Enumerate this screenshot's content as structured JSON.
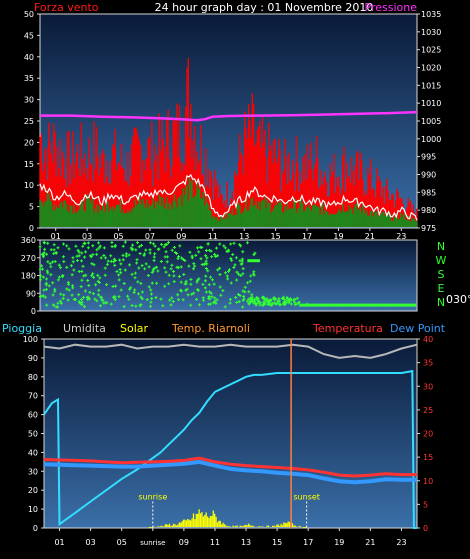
{
  "title": "24 hour graph day : 01 Novembre 2010",
  "colors": {
    "background": "#000000",
    "plot_top": "#3a6fa8",
    "plot_bottom": "#0a1a38",
    "frame": "#d8d8d8",
    "wind_speed": "#ff1a1a",
    "wind_gust": "#ff0000",
    "wind_avg": "#ffffff",
    "wind_fill_green": "#1a8a1a",
    "pressure": "#ff33ff",
    "direction": "#33ff33",
    "rain": "#33ddff",
    "humidity": "#b8b8b8",
    "solar": "#ffff00",
    "temp_label": "#ff9933",
    "temperature": "#ff3333",
    "dew_point": "#3399ff",
    "marker": "#ff8040",
    "annotation": "#ffff00",
    "tick_text": "#ffffff"
  },
  "chart_data": [
    {
      "type": "line",
      "panel": "wind_pressure",
      "labels": {
        "left": "Forza vento",
        "right": "Pressione"
      },
      "y_left_ticks": [
        0,
        5,
        10,
        15,
        20,
        25,
        30,
        35,
        40,
        45,
        50
      ],
      "y_left_range": [
        0,
        50
      ],
      "y_right_ticks": [
        975,
        980,
        985,
        990,
        995,
        1000,
        1005,
        1010,
        1015,
        1020,
        1025,
        1030,
        1035
      ],
      "y_right_range": [
        975,
        1035
      ],
      "x_ticks": [
        "01",
        "03",
        "05",
        "07",
        "09",
        "11",
        "13",
        "15",
        "17",
        "19",
        "21",
        "23"
      ],
      "x_range": [
        0,
        24
      ],
      "series": [
        {
          "name": "Forza vento",
          "role": "wind_avg",
          "x": [
            0.0,
            0.5,
            1.0,
            1.5,
            2.0,
            2.5,
            3.0,
            3.5,
            4.0,
            4.5,
            5.0,
            5.5,
            6.0,
            6.5,
            7.0,
            7.5,
            8.0,
            8.5,
            9.0,
            9.5,
            10.0,
            10.5,
            11.0,
            11.5,
            12.0,
            12.5,
            13.0,
            13.5,
            14.0,
            14.5,
            15.0,
            15.5,
            16.0,
            16.5,
            17.0,
            17.5,
            18.0,
            18.5,
            19.0,
            19.5,
            20.0,
            20.5,
            21.0,
            21.5,
            22.0,
            22.5,
            23.0,
            23.5,
            24.0
          ],
          "y": [
            10,
            9,
            7,
            8,
            7,
            6,
            8,
            7,
            6,
            8,
            7,
            6,
            7,
            8,
            7,
            9,
            8,
            9,
            10,
            12,
            11,
            9,
            4,
            3,
            4,
            6,
            7,
            9,
            8,
            7,
            7,
            6,
            7,
            7,
            6,
            6,
            6,
            5,
            6,
            7,
            6,
            6,
            5,
            4,
            4,
            3,
            4,
            3,
            2
          ]
        },
        {
          "name": "Raffica",
          "role": "wind_gust",
          "x": [
            0.0,
            0.5,
            1.0,
            1.5,
            2.0,
            2.5,
            3.0,
            3.5,
            4.0,
            4.5,
            5.0,
            5.5,
            6.0,
            6.5,
            7.0,
            7.5,
            8.0,
            8.5,
            9.0,
            9.5,
            10.0,
            10.5,
            11.0,
            11.5,
            12.0,
            12.5,
            13.0,
            13.5,
            14.0,
            14.5,
            15.0,
            15.5,
            16.0,
            16.5,
            17.0,
            17.5,
            18.0,
            18.5,
            19.0,
            19.5,
            20.0,
            20.5,
            21.0,
            21.5,
            22.0,
            22.5,
            23.0,
            23.5,
            24.0
          ],
          "y": [
            26,
            22,
            24,
            20,
            19,
            21,
            20,
            22,
            18,
            21,
            19,
            17,
            20,
            23,
            21,
            22,
            24,
            26,
            27,
            38,
            25,
            21,
            15,
            8,
            10,
            16,
            24,
            27,
            22,
            21,
            20,
            17,
            19,
            18,
            17,
            20,
            16,
            15,
            16,
            18,
            16,
            15,
            14,
            12,
            10,
            9,
            8,
            6,
            4
          ]
        },
        {
          "name": "Pressione",
          "role": "pressure",
          "x": [
            0,
            2,
            4,
            6,
            8,
            9,
            10,
            10.5,
            11,
            12,
            14,
            16,
            18,
            20,
            22,
            24
          ],
          "y": [
            1006.5,
            1006.5,
            1006.2,
            1006,
            1005.7,
            1005.5,
            1005.2,
            1005.5,
            1006.2,
            1006.4,
            1006.5,
            1006.6,
            1006.8,
            1007,
            1007.2,
            1007.5
          ]
        }
      ]
    },
    {
      "type": "scatter",
      "panel": "wind_direction",
      "y_ticks": [
        0,
        90,
        180,
        270,
        360
      ],
      "y_range": [
        0,
        360
      ],
      "compass_labels": [
        "N",
        "W",
        "S",
        "E",
        "N"
      ],
      "current_direction": "030°",
      "x_range": [
        0,
        24
      ],
      "series": [
        {
          "name": "Direzione",
          "x": [
            0.2,
            0.5,
            0.9,
            1.3,
            1.7,
            2.1,
            2.5,
            2.9,
            3.3,
            3.7,
            4.1,
            4.5,
            4.9,
            5.3,
            5.7,
            6.1,
            6.5,
            6.9,
            7.3,
            7.7,
            8.1,
            8.5,
            8.9,
            9.3,
            9.7,
            10.1,
            10.5,
            10.9,
            11.3,
            11.7,
            12.1,
            12.5,
            12.9,
            13.3,
            13.6,
            14.0,
            14.5,
            15.0,
            15.5,
            16.0,
            16.5,
            17.0,
            18.0,
            19.0,
            20.0,
            21.0,
            22.0,
            23.0,
            23.8
          ],
          "y": [
            290,
            250,
            310,
            220,
            330,
            270,
            200,
            300,
            240,
            150,
            320,
            280,
            200,
            260,
            110,
            310,
            230,
            180,
            290,
            60,
            250,
            200,
            330,
            150,
            270,
            300,
            240,
            90,
            280,
            330,
            40,
            270,
            20,
            60,
            40,
            30,
            50,
            60,
            40,
            55,
            45,
            35,
            30,
            30,
            30,
            30,
            30,
            30,
            30
          ]
        }
      ]
    },
    {
      "type": "line",
      "panel": "temperature_rain",
      "labels": {
        "rain": "Pioggia",
        "humidity": "Umidita",
        "solar": "Solar",
        "temp_riarnoli": "Temp. Riarnoli",
        "temperature": "Temperatura",
        "dew_point": "Dew Point"
      },
      "y_left_ticks": [
        0,
        10,
        20,
        30,
        40,
        50,
        60,
        70,
        80,
        90,
        100
      ],
      "y_left_range": [
        0,
        100
      ],
      "y_right_ticks": [
        0,
        5,
        10,
        15,
        20,
        25,
        30,
        35,
        40
      ],
      "y_right_range": [
        0,
        40
      ],
      "x_ticks": [
        "01",
        "03",
        "05",
        "sunrise",
        "09",
        "11",
        "13",
        "15",
        "17",
        "19",
        "21",
        "23"
      ],
      "x_range": [
        0,
        24
      ],
      "annotations": {
        "sunrise": "sunrise",
        "sunset": "sunset",
        "sunrise_x": 7.0,
        "sunset_x": 16.9,
        "marker_x": 15.9
      },
      "series": [
        {
          "name": "Umidita",
          "role": "humidity",
          "x": [
            0,
            1,
            2,
            3,
            4,
            5,
            6,
            7,
            8,
            9,
            10,
            11,
            12,
            13,
            14,
            15,
            16,
            17,
            18,
            19,
            20,
            21,
            22,
            23,
            24
          ],
          "y": [
            96,
            95,
            97,
            96,
            96,
            97,
            95,
            96,
            96,
            97,
            96,
            96,
            97,
            96,
            96,
            96,
            97,
            96,
            92,
            90,
            91,
            90,
            92,
            95,
            97
          ]
        },
        {
          "name": "Pioggia",
          "role": "rain",
          "x": [
            0.0,
            0.5,
            0.9,
            1.0,
            2,
            3,
            4,
            5,
            6,
            7,
            7.5,
            8,
            8.5,
            9,
            9.5,
            10,
            10.5,
            11,
            11.5,
            12,
            12.5,
            13,
            13.5,
            14,
            15,
            16,
            17,
            18,
            19,
            20,
            21,
            22,
            23,
            23.7,
            23.8,
            24
          ],
          "y": [
            60,
            66,
            68,
            2,
            8,
            14,
            20,
            26,
            31,
            37,
            40,
            44,
            48,
            52,
            57,
            61,
            67,
            72,
            74,
            76,
            78,
            80,
            81,
            81,
            82,
            82,
            82,
            82,
            82,
            82,
            82,
            82,
            82,
            83,
            0,
            0
          ]
        },
        {
          "name": "Temperatura",
          "role": "temperature",
          "x": [
            0,
            1,
            2,
            3,
            4,
            5,
            6,
            7,
            8,
            9,
            10,
            11,
            12,
            13,
            14,
            15,
            16,
            17,
            18,
            19,
            20,
            21,
            22,
            23,
            24
          ],
          "y": [
            14.5,
            14.4,
            14.3,
            14.2,
            14.0,
            13.8,
            13.9,
            14.0,
            14.1,
            14.3,
            14.8,
            14.0,
            13.5,
            13.2,
            13.0,
            12.8,
            12.6,
            12.3,
            11.8,
            11.2,
            11.0,
            11.2,
            11.5,
            11.3,
            11.3
          ]
        },
        {
          "name": "Dew Point",
          "role": "dew_point",
          "x": [
            0,
            1,
            2,
            3,
            4,
            5,
            6,
            7,
            8,
            9,
            10,
            11,
            12,
            13,
            14,
            15,
            16,
            17,
            18,
            19,
            20,
            21,
            22,
            23,
            24
          ],
          "y": [
            13.5,
            13.4,
            13.3,
            13.2,
            13.1,
            13.0,
            13.0,
            13.2,
            13.4,
            13.6,
            14.0,
            13.2,
            12.5,
            12.2,
            12.0,
            11.7,
            11.5,
            11.2,
            10.5,
            9.9,
            9.7,
            9.9,
            10.3,
            10.2,
            10.2
          ]
        },
        {
          "name": "Solar",
          "role": "solar",
          "x": [
            6.8,
            7.2,
            7.6,
            8.0,
            8.4,
            8.8,
            9.2,
            9.6,
            10.0,
            10.4,
            10.8,
            11.2,
            11.6,
            12.0,
            12.4,
            12.8,
            13.2,
            13.6,
            14.0,
            14.4,
            14.8,
            15.2,
            15.6,
            16.0,
            16.4,
            16.8
          ],
          "y": [
            0,
            1,
            1,
            2,
            2,
            3,
            4,
            6,
            9,
            7,
            8,
            5,
            2,
            1,
            1,
            1,
            2,
            1,
            1,
            1,
            1,
            2,
            3,
            2,
            1,
            0
          ]
        }
      ]
    }
  ]
}
